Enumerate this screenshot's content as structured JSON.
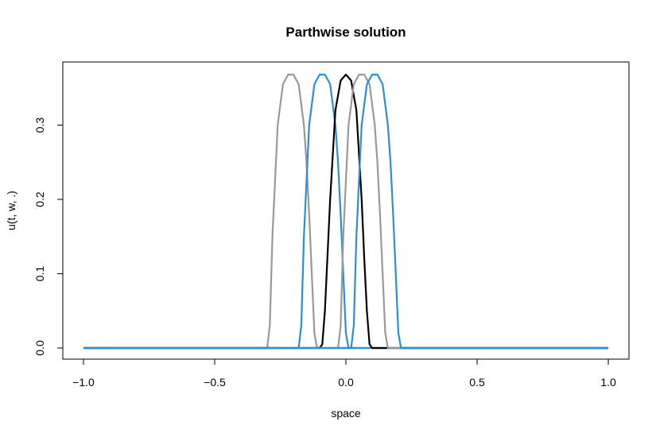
{
  "chart_data": {
    "type": "line",
    "title": "Parthwise solution",
    "xlabel": "space",
    "ylabel": "u(t, w, .)",
    "xlim": [
      -1.0,
      1.0
    ],
    "ylim": [
      0.0,
      0.37
    ],
    "x_ticks": [
      -1.0,
      -0.5,
      0.0,
      0.5,
      1.0
    ],
    "x_tick_labels": [
      "−1.0",
      "−0.5",
      "0.0",
      "0.5",
      "1.0"
    ],
    "y_ticks": [
      0.0,
      0.1,
      0.2,
      0.3
    ],
    "y_tick_labels": [
      "0.0",
      "0.1",
      "0.2",
      "0.3"
    ],
    "grid": false,
    "legend": "none",
    "colors": {
      "gray": "#999999",
      "blue": "#2a8fd8",
      "black": "#000000"
    },
    "series": [
      {
        "color": "gray",
        "x": [
          -1.0,
          -0.3,
          -0.29,
          -0.28,
          -0.26,
          -0.24,
          -0.22,
          -0.2,
          -0.18,
          -0.16,
          -0.15,
          -0.14,
          -0.13,
          -0.12,
          -0.11,
          1.0
        ],
        "y": [
          0.0,
          0.0,
          0.03,
          0.15,
          0.3,
          0.355,
          0.368,
          0.368,
          0.355,
          0.3,
          0.25,
          0.18,
          0.1,
          0.02,
          0.0,
          0.0
        ]
      },
      {
        "color": "blue",
        "x": [
          -1.0,
          -0.18,
          -0.17,
          -0.16,
          -0.14,
          -0.12,
          -0.1,
          -0.08,
          -0.06,
          -0.04,
          -0.03,
          -0.02,
          -0.01,
          0.0,
          0.01,
          1.0
        ],
        "y": [
          0.0,
          0.0,
          0.03,
          0.15,
          0.3,
          0.355,
          0.368,
          0.368,
          0.355,
          0.3,
          0.25,
          0.18,
          0.1,
          0.02,
          0.0,
          0.0
        ]
      },
      {
        "color": "black",
        "x": [
          -1.0,
          -0.1,
          -0.09,
          -0.08,
          -0.06,
          -0.04,
          -0.02,
          0.0,
          0.02,
          0.04,
          0.06,
          0.07,
          0.08,
          0.09,
          0.1,
          1.0
        ],
        "y": [
          0.0,
          0.0,
          0.005,
          0.05,
          0.2,
          0.32,
          0.36,
          0.368,
          0.36,
          0.32,
          0.2,
          0.12,
          0.05,
          0.005,
          0.0,
          0.0
        ]
      },
      {
        "color": "gray",
        "x": [
          -1.0,
          -0.03,
          -0.02,
          -0.01,
          0.01,
          0.03,
          0.05,
          0.07,
          0.09,
          0.11,
          0.12,
          0.13,
          0.14,
          0.15,
          0.16,
          1.0
        ],
        "y": [
          0.0,
          0.0,
          0.03,
          0.15,
          0.3,
          0.355,
          0.368,
          0.368,
          0.355,
          0.3,
          0.25,
          0.18,
          0.1,
          0.02,
          0.0,
          0.0
        ]
      },
      {
        "color": "blue",
        "x": [
          -1.0,
          0.02,
          0.03,
          0.04,
          0.06,
          0.08,
          0.1,
          0.12,
          0.14,
          0.16,
          0.17,
          0.18,
          0.19,
          0.2,
          0.21,
          1.0
        ],
        "y": [
          0.0,
          0.0,
          0.03,
          0.15,
          0.3,
          0.355,
          0.368,
          0.368,
          0.355,
          0.3,
          0.25,
          0.18,
          0.1,
          0.02,
          0.0,
          0.0
        ]
      }
    ]
  }
}
